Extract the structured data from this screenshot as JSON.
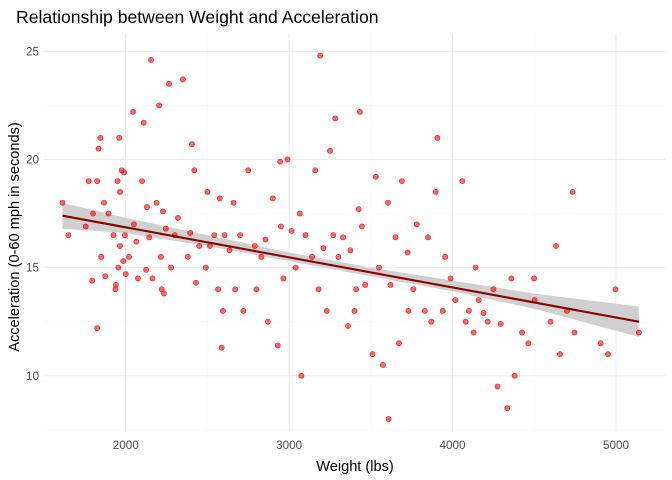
{
  "chart_data": {
    "type": "scatter",
    "title": "Relationship between Weight and Acceleration",
    "xlabel": "Weight (lbs)",
    "ylabel": "Acceleration (0-60 mph in seconds)",
    "xlim": [
      1500,
      5300
    ],
    "ylim": [
      7.4,
      25.8
    ],
    "x_ticks": [
      2000,
      3000,
      4000,
      5000
    ],
    "y_ticks": [
      10,
      15,
      20,
      25
    ],
    "grid": true,
    "legend": "none",
    "colors": {
      "points": "#ff0000",
      "point_outline": "#cc0000",
      "trend_line": "#8b0000",
      "confidence_band": "#d0d0d0",
      "grid_major": "#ebebeb",
      "grid_minor": "#f5f5f5"
    },
    "trend": {
      "method": "linear",
      "x": [
        1613,
        5140
      ],
      "y": [
        17.4,
        12.5
      ],
      "band": [
        {
          "x": 1613,
          "lower": 16.8,
          "upper": 18.0
        },
        {
          "x": 2000,
          "lower": 16.6,
          "upper": 17.3
        },
        {
          "x": 2500,
          "lower": 16.0,
          "upper": 16.5
        },
        {
          "x": 3000,
          "lower": 15.3,
          "upper": 15.7
        },
        {
          "x": 3500,
          "lower": 14.6,
          "upper": 15.0
        },
        {
          "x": 4000,
          "lower": 13.9,
          "upper": 14.4
        },
        {
          "x": 4500,
          "lower": 13.1,
          "upper": 13.8
        },
        {
          "x": 5140,
          "lower": 11.8,
          "upper": 13.2
        }
      ]
    },
    "points": [
      [
        1613,
        18.0
      ],
      [
        1649,
        16.5
      ],
      [
        1755,
        16.9
      ],
      [
        1773,
        19.0
      ],
      [
        1795,
        14.4
      ],
      [
        1800,
        17.5
      ],
      [
        1825,
        12.2
      ],
      [
        1825,
        19.0
      ],
      [
        1834,
        20.5
      ],
      [
        1845,
        21.0
      ],
      [
        1850,
        15.5
      ],
      [
        1867,
        18.0
      ],
      [
        1875,
        14.6
      ],
      [
        1895,
        17.5
      ],
      [
        1925,
        16.5
      ],
      [
        1937,
        14.0
      ],
      [
        1940,
        14.2
      ],
      [
        1950,
        19.0
      ],
      [
        1955,
        15.0
      ],
      [
        1960,
        21.0
      ],
      [
        1965,
        16.0
      ],
      [
        1965,
        18.5
      ],
      [
        1975,
        19.5
      ],
      [
        1985,
        15.3
      ],
      [
        1990,
        19.4
      ],
      [
        1995,
        16.5
      ],
      [
        2000,
        14.7
      ],
      [
        2020,
        15.5
      ],
      [
        2045,
        22.2
      ],
      [
        2050,
        17.0
      ],
      [
        2065,
        16.2
      ],
      [
        2075,
        14.5
      ],
      [
        2100,
        19.0
      ],
      [
        2110,
        21.7
      ],
      [
        2125,
        14.9
      ],
      [
        2130,
        17.8
      ],
      [
        2144,
        16.4
      ],
      [
        2155,
        24.6
      ],
      [
        2164,
        14.5
      ],
      [
        2189,
        18.0
      ],
      [
        2205,
        22.5
      ],
      [
        2215,
        15.5
      ],
      [
        2220,
        14.0
      ],
      [
        2228,
        17.6
      ],
      [
        2234,
        13.8
      ],
      [
        2245,
        16.8
      ],
      [
        2265,
        23.5
      ],
      [
        2278,
        15.0
      ],
      [
        2300,
        16.5
      ],
      [
        2320,
        17.3
      ],
      [
        2350,
        23.7
      ],
      [
        2380,
        15.5
      ],
      [
        2395,
        16.6
      ],
      [
        2405,
        20.7
      ],
      [
        2420,
        19.5
      ],
      [
        2430,
        14.3
      ],
      [
        2450,
        16.0
      ],
      [
        2490,
        15.0
      ],
      [
        2500,
        18.5
      ],
      [
        2515,
        16.0
      ],
      [
        2542,
        16.5
      ],
      [
        2565,
        14.0
      ],
      [
        2575,
        18.2
      ],
      [
        2587,
        11.3
      ],
      [
        2595,
        13.0
      ],
      [
        2605,
        16.5
      ],
      [
        2635,
        15.8
      ],
      [
        2660,
        18.0
      ],
      [
        2670,
        14.0
      ],
      [
        2700,
        16.5
      ],
      [
        2720,
        13.0
      ],
      [
        2750,
        19.5
      ],
      [
        2790,
        16.0
      ],
      [
        2800,
        14.0
      ],
      [
        2830,
        15.5
      ],
      [
        2855,
        16.3
      ],
      [
        2870,
        12.5
      ],
      [
        2900,
        18.2
      ],
      [
        2930,
        11.4
      ],
      [
        2945,
        19.9
      ],
      [
        2950,
        16.9
      ],
      [
        2965,
        14.5
      ],
      [
        2990,
        20.0
      ],
      [
        3015,
        16.7
      ],
      [
        3040,
        15.0
      ],
      [
        3065,
        17.5
      ],
      [
        3075,
        10.0
      ],
      [
        3100,
        16.5
      ],
      [
        3140,
        15.5
      ],
      [
        3160,
        19.5
      ],
      [
        3180,
        14.0
      ],
      [
        3190,
        24.8
      ],
      [
        3210,
        15.9
      ],
      [
        3230,
        13.0
      ],
      [
        3250,
        20.4
      ],
      [
        3270,
        16.5
      ],
      [
        3282,
        21.9
      ],
      [
        3302,
        15.5
      ],
      [
        3330,
        16.4
      ],
      [
        3360,
        12.3
      ],
      [
        3375,
        15.8
      ],
      [
        3400,
        13.0
      ],
      [
        3410,
        14.0
      ],
      [
        3425,
        17.7
      ],
      [
        3433,
        22.2
      ],
      [
        3445,
        16.9
      ],
      [
        3465,
        14.2
      ],
      [
        3510,
        11.0
      ],
      [
        3530,
        19.2
      ],
      [
        3550,
        15.0
      ],
      [
        3574,
        10.5
      ],
      [
        3605,
        18.0
      ],
      [
        3609,
        8.0
      ],
      [
        3620,
        14.2
      ],
      [
        3651,
        16.4
      ],
      [
        3672,
        11.5
      ],
      [
        3690,
        19.0
      ],
      [
        3725,
        15.7
      ],
      [
        3730,
        13.0
      ],
      [
        3760,
        14.0
      ],
      [
        3781,
        17.0
      ],
      [
        3830,
        13.0
      ],
      [
        3850,
        16.4
      ],
      [
        3870,
        12.5
      ],
      [
        3897,
        18.5
      ],
      [
        3907,
        21.0
      ],
      [
        3940,
        13.0
      ],
      [
        3955,
        15.5
      ],
      [
        3988,
        14.5
      ],
      [
        4017,
        13.5
      ],
      [
        4060,
        19.0
      ],
      [
        4080,
        12.5
      ],
      [
        4100,
        13.0
      ],
      [
        4129,
        12.0
      ],
      [
        4141,
        15.0
      ],
      [
        4160,
        13.5
      ],
      [
        4190,
        12.9
      ],
      [
        4215,
        12.5
      ],
      [
        4250,
        14.0
      ],
      [
        4275,
        9.5
      ],
      [
        4295,
        12.4
      ],
      [
        4335,
        8.5
      ],
      [
        4360,
        14.5
      ],
      [
        4380,
        10.0
      ],
      [
        4425,
        12.0
      ],
      [
        4464,
        11.5
      ],
      [
        4499,
        14.5
      ],
      [
        4502,
        13.5
      ],
      [
        4600,
        12.5
      ],
      [
        4633,
        16.0
      ],
      [
        4657,
        11.0
      ],
      [
        4700,
        13.0
      ],
      [
        4735,
        18.5
      ],
      [
        4746,
        12.0
      ],
      [
        4906,
        11.5
      ],
      [
        4951,
        11.0
      ],
      [
        4997,
        14.0
      ],
      [
        5140,
        12.0
      ]
    ]
  }
}
